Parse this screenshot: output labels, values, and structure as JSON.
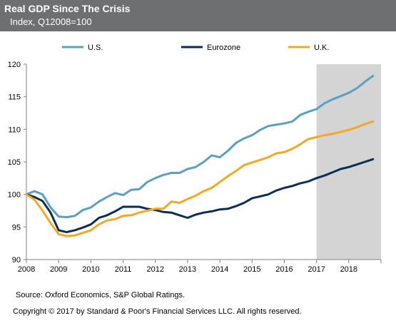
{
  "header": {
    "title": "Real GDP Since The Crisis",
    "subtitle": "Index, Q12008=100"
  },
  "footer": {
    "source": "Source: Oxford Economics, S&P Global Ratings.",
    "copyright": "Copyright © 2017 by Standard & Poor's Financial Services LLC. All rights reserved."
  },
  "colors": {
    "header_bg": "#6d6f71",
    "forecast_shade": "#d4d4d4",
    "axis": "#808080"
  },
  "chart_data": {
    "type": "line",
    "title": "Real GDP Since The Crisis",
    "subtitle": "Index, Q12008=100",
    "xlabel": "",
    "ylabel": "",
    "xlim": [
      2008,
      2019
    ],
    "ylim": [
      90,
      120
    ],
    "yticks": [
      90,
      95,
      100,
      105,
      110,
      115,
      120
    ],
    "xticks": [
      "2008",
      "2009",
      "2010",
      "2011",
      "2012",
      "2013",
      "2014",
      "2015",
      "2016",
      "2017",
      "2018"
    ],
    "grid": false,
    "legend": "top",
    "forecast_shading": {
      "from": 2017,
      "to": 2019
    },
    "x": [
      2008.0,
      2008.25,
      2008.5,
      2008.75,
      2009.0,
      2009.25,
      2009.5,
      2009.75,
      2010.0,
      2010.25,
      2010.5,
      2010.75,
      2011.0,
      2011.25,
      2011.5,
      2011.75,
      2012.0,
      2012.25,
      2012.5,
      2012.75,
      2013.0,
      2013.25,
      2013.5,
      2013.75,
      2014.0,
      2014.25,
      2014.5,
      2014.75,
      2015.0,
      2015.25,
      2015.5,
      2015.75,
      2016.0,
      2016.25,
      2016.5,
      2016.75,
      2017.0,
      2017.25,
      2017.5,
      2017.75,
      2018.0,
      2018.25,
      2018.5,
      2018.75
    ],
    "series": [
      {
        "name": "U.S.",
        "color": "#5b9fc5",
        "values": [
          100.0,
          100.5,
          100.0,
          98.0,
          96.6,
          96.5,
          96.7,
          97.6,
          98.0,
          98.9,
          99.6,
          100.2,
          99.9,
          100.7,
          100.8,
          101.9,
          102.5,
          103.0,
          103.3,
          103.3,
          103.9,
          104.2,
          105.0,
          106.0,
          105.7,
          106.7,
          107.9,
          108.6,
          109.1,
          109.9,
          110.5,
          110.7,
          110.9,
          111.2,
          112.2,
          112.7,
          113.1,
          114.0,
          114.6,
          115.1,
          115.6,
          116.3,
          117.3,
          118.2
        ]
      },
      {
        "name": "Eurozone",
        "color": "#0b2e57",
        "values": [
          100.0,
          99.6,
          99.0,
          97.2,
          94.5,
          94.2,
          94.5,
          94.9,
          95.4,
          96.4,
          96.8,
          97.4,
          98.1,
          98.1,
          98.1,
          97.8,
          97.6,
          97.3,
          97.2,
          96.8,
          96.4,
          96.9,
          97.2,
          97.4,
          97.7,
          97.8,
          98.2,
          98.7,
          99.4,
          99.7,
          100.0,
          100.6,
          101.0,
          101.3,
          101.7,
          102.0,
          102.5,
          102.9,
          103.4,
          103.9,
          104.2,
          104.6,
          105.0,
          105.4
        ]
      },
      {
        "name": "U.K.",
        "color": "#f5a823",
        "values": [
          100.0,
          99.2,
          97.5,
          95.6,
          93.9,
          93.6,
          93.7,
          94.1,
          94.5,
          95.4,
          96.0,
          96.2,
          96.7,
          96.8,
          97.2,
          97.5,
          97.8,
          97.8,
          98.9,
          98.7,
          99.3,
          99.8,
          100.5,
          101.0,
          101.9,
          102.8,
          103.6,
          104.5,
          104.9,
          105.3,
          105.7,
          106.3,
          106.5,
          107.0,
          107.7,
          108.5,
          108.8,
          109.1,
          109.3,
          109.6,
          109.9,
          110.3,
          110.8,
          111.2
        ]
      }
    ]
  }
}
